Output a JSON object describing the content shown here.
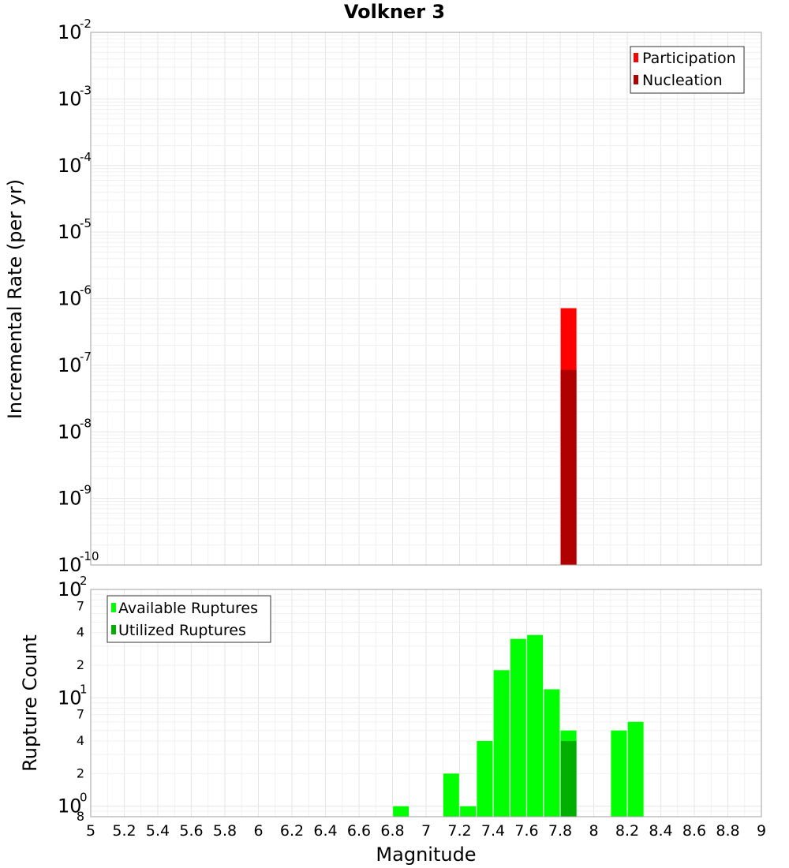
{
  "colors": {
    "participation": "#ff0000",
    "nucleation": "#b00000",
    "available": "#00ff00",
    "utilized": "#00b000"
  },
  "chart_data": [
    {
      "type": "bar",
      "title": "Volkner 3",
      "ylabel": "Incremental Rate (per yr)",
      "yscale": "log",
      "ylim": [
        1e-10,
        0.01
      ],
      "xlim": [
        5,
        9
      ],
      "y_ticks": [
        {
          "base": "10",
          "exp": "-2",
          "value": -2
        },
        {
          "base": "10",
          "exp": "-3",
          "value": -3
        },
        {
          "base": "10",
          "exp": "-4",
          "value": -4
        },
        {
          "base": "10",
          "exp": "-5",
          "value": -5
        },
        {
          "base": "10",
          "exp": "-6",
          "value": -6
        },
        {
          "base": "10",
          "exp": "-7",
          "value": -7
        },
        {
          "base": "10",
          "exp": "-8",
          "value": -8
        },
        {
          "base": "10",
          "exp": "-9",
          "value": -9
        },
        {
          "base": "10",
          "exp": "-10",
          "value": -10
        }
      ],
      "legend": {
        "position": "top-right",
        "entries": [
          "Participation",
          "Nucleation"
        ]
      },
      "series": [
        {
          "name": "Participation",
          "x": [
            7.85
          ],
          "values": [
            7.2e-07
          ]
        },
        {
          "name": "Nucleation",
          "x": [
            7.85
          ],
          "values": [
            8.5e-08
          ]
        }
      ],
      "grid": true
    },
    {
      "type": "bar",
      "xlabel": "Magnitude",
      "ylabel": "Rupture Count",
      "yscale": "log",
      "ylim": [
        0.8,
        100
      ],
      "xlim": [
        5,
        9
      ],
      "x_ticks": [
        "5",
        "5.2",
        "5.4",
        "5.6",
        "5.8",
        "6",
        "6.2",
        "6.4",
        "6.6",
        "6.8",
        "7",
        "7.2",
        "7.4",
        "7.6",
        "7.8",
        "8",
        "8.2",
        "8.4",
        "8.6",
        "8.8",
        "9"
      ],
      "y_major_ticks": [
        {
          "base": "10",
          "exp": "2",
          "value": 100
        },
        {
          "base": "10",
          "exp": "1",
          "value": 10
        },
        {
          "base": "10",
          "exp": "0",
          "value": 1
        }
      ],
      "y_minor_ticks": [
        {
          "label": "7",
          "value": 70
        },
        {
          "label": "4",
          "value": 40
        },
        {
          "label": "2",
          "value": 20
        },
        {
          "label": "7",
          "value": 7
        },
        {
          "label": "4",
          "value": 4
        },
        {
          "label": "2",
          "value": 2
        },
        {
          "label": "8",
          "value": 0.8
        }
      ],
      "legend": {
        "position": "top-left",
        "entries": [
          "Available Ruptures",
          "Utilized Ruptures"
        ]
      },
      "series": [
        {
          "name": "Available Ruptures",
          "x": [
            6.85,
            7.15,
            7.25,
            7.35,
            7.45,
            7.55,
            7.65,
            7.75,
            7.85,
            8.15,
            8.25
          ],
          "values": [
            1,
            2,
            1,
            4,
            18,
            35,
            38,
            12,
            5,
            5,
            6
          ]
        },
        {
          "name": "Utilized Ruptures",
          "x": [
            7.85
          ],
          "values": [
            4
          ]
        }
      ],
      "grid": true
    }
  ]
}
